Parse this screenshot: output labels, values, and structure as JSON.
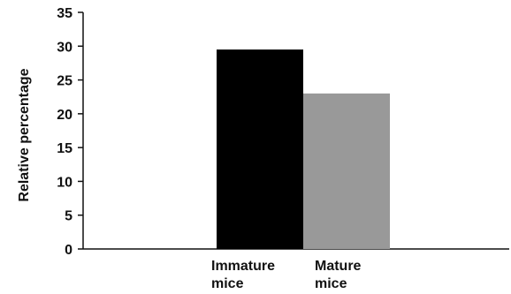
{
  "chart_data": {
    "type": "bar",
    "categories": [
      [
        "Immature",
        "mice"
      ],
      [
        "Mature",
        "mice"
      ]
    ],
    "values": [
      29.5,
      23
    ],
    "colors": [
      "#000000",
      "#999999"
    ],
    "ylabel": "Relative percentage",
    "xlabel": "",
    "title": "",
    "ylim": [
      0,
      35
    ],
    "yticks": [
      0,
      5,
      10,
      15,
      20,
      25,
      30,
      35
    ],
    "grid": false,
    "legend": "none"
  }
}
